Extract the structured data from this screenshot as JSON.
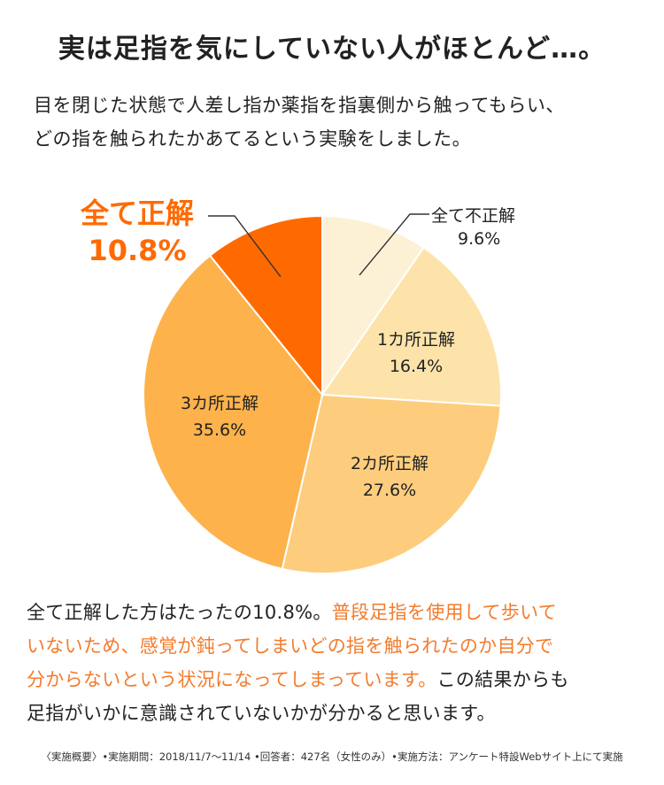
{
  "title": "実は足指を気にしていない人がほとんど…。",
  "intro": {
    "line1": "目を閉じた状態で人差し指か薬指を指裏側から触ってもらい、",
    "line2": "どの指を触られたかあてるという実験をしました。"
  },
  "chart_data": {
    "type": "pie",
    "categories": [
      "全て不正解",
      "1カ所正解",
      "2カ所正解",
      "3カ所正解",
      "全て正解"
    ],
    "values": [
      9.6,
      16.4,
      27.6,
      35.6,
      10.8
    ],
    "value_labels": [
      "9.6%",
      "16.4%",
      "27.6%",
      "35.6%",
      "10.8%"
    ],
    "colors": [
      "#fdf1d5",
      "#fde3aa",
      "#fdcd7d",
      "#fdb24b",
      "#ff6a00"
    ],
    "highlight_index": 4,
    "start": "12 o'clock, clockwise"
  },
  "conclusion": {
    "line1_normal": "全て正解した方はたったの10.8%。",
    "line1_highlight": "普段足指を使用して歩いて",
    "line2_highlight": "いないため、感覚が鈍ってしまいどの指を触られたのか自分で",
    "line3_highlight": "分からないという状況になってしまっています。",
    "line3_normal": "この結果からも",
    "line4_normal": "足指がいかに意識されていないかが分かると思います。"
  },
  "note": "〈実施概要〉•実施期間：2018/11/7〜11/14 •回答者：427名（女性のみ）•実施方法：アンケート特設Webサイト上にて実施"
}
